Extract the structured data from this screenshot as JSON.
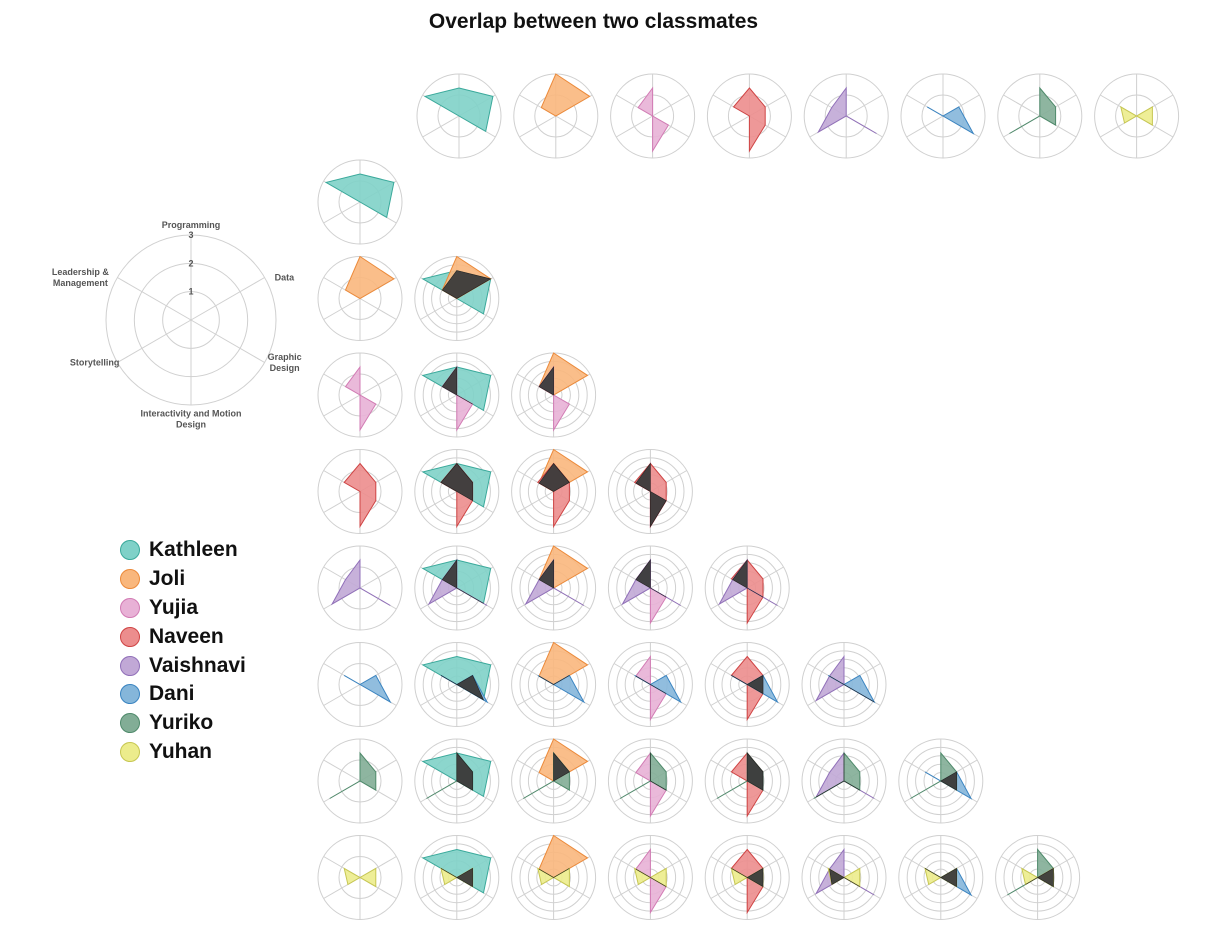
{
  "chart_data": {
    "type": "radar",
    "title": "Overlap between two classmates",
    "axes": [
      "Programming",
      "Data",
      "Graphic Design",
      "Interactivity and Motion Design",
      "Storytelling",
      "Leadership & Management"
    ],
    "axis_label_lines": [
      [
        "Programming"
      ],
      [
        "Data"
      ],
      [
        "Graphic",
        "Design"
      ],
      [
        "Interactivity and Motion",
        "Design"
      ],
      [
        "Storytelling"
      ],
      [
        "Leadership &",
        "Management"
      ]
    ],
    "rlim": [
      0,
      3
    ],
    "rticks": [
      "1",
      "2",
      "3"
    ],
    "overlap_color": "#3a3a3a",
    "series": [
      {
        "name": "Kathleen",
        "color": "#7fd1c8",
        "stroke": "#3aa99b",
        "values": [
          2.0,
          2.8,
          2.2,
          0.0,
          0.0,
          2.8
        ]
      },
      {
        "name": "Joli",
        "color": "#f9b77d",
        "stroke": "#ec8a3a",
        "values": [
          3.0,
          2.8,
          0.0,
          0.0,
          0.0,
          1.2
        ]
      },
      {
        "name": "Yujia",
        "color": "#e8b1d6",
        "stroke": "#d27bb4",
        "values": [
          2.0,
          0.0,
          1.3,
          2.5,
          0.0,
          1.2
        ]
      },
      {
        "name": "Naveen",
        "color": "#ec8d8d",
        "stroke": "#cf4444",
        "values": [
          2.0,
          1.3,
          1.3,
          2.5,
          0.0,
          1.3
        ]
      },
      {
        "name": "Vaishnavi",
        "color": "#c1a8d6",
        "stroke": "#9170b9",
        "values": [
          2.0,
          0.0,
          2.5,
          0.0,
          2.3,
          1.2
        ]
      },
      {
        "name": "Dani",
        "color": "#85b6da",
        "stroke": "#3a84c1",
        "values": [
          0.0,
          1.3,
          2.5,
          0.0,
          0.0,
          1.3
        ]
      },
      {
        "name": "Yuriko",
        "color": "#82ad96",
        "stroke": "#4f8a6b",
        "values": [
          2.0,
          1.3,
          1.3,
          0.0,
          2.5,
          0.0
        ]
      },
      {
        "name": "Yuhan",
        "color": "#ecec8c",
        "stroke": "#c7c752",
        "values": [
          0.0,
          1.3,
          1.3,
          0.0,
          1.0,
          1.3
        ]
      }
    ]
  }
}
